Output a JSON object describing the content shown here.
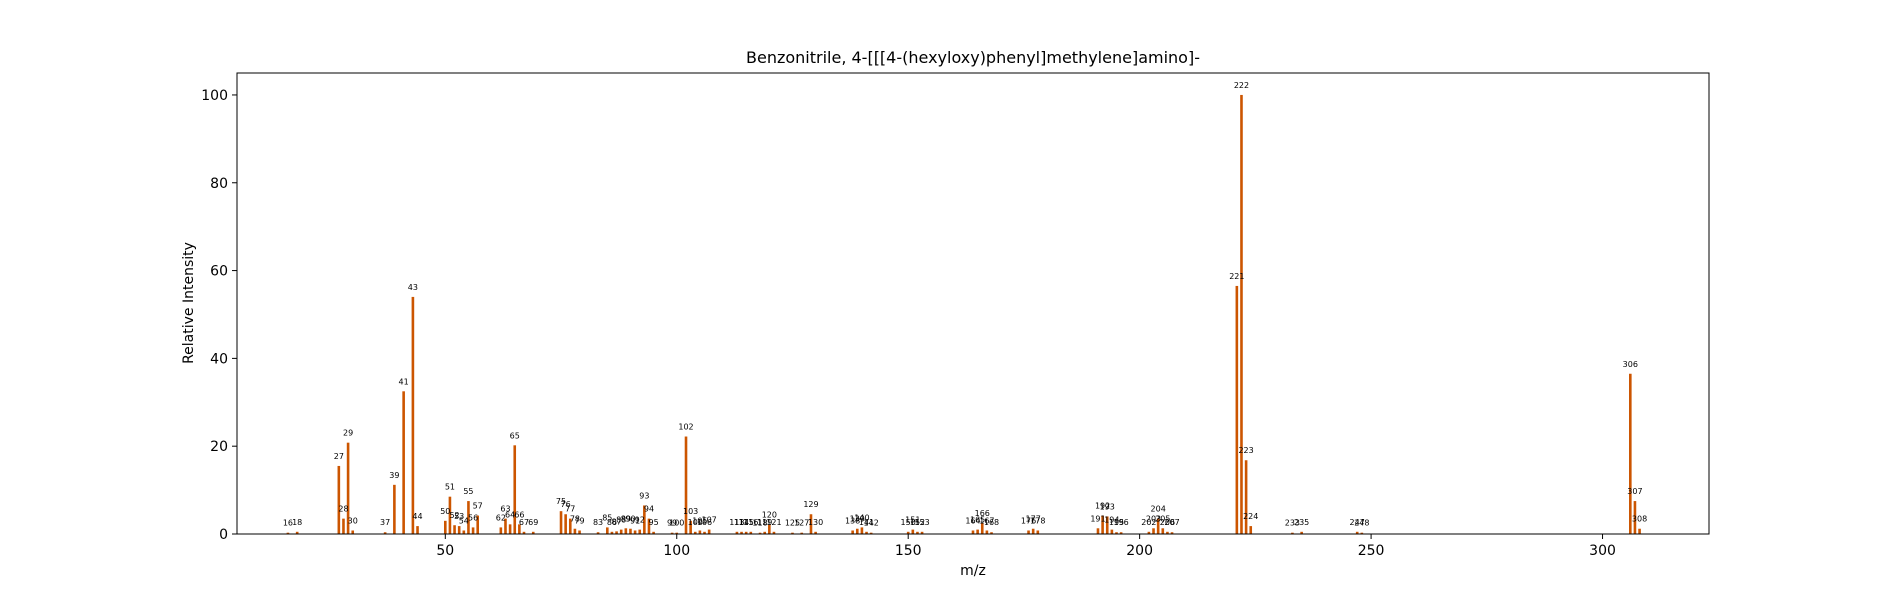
{
  "chart_data": {
    "type": "bar",
    "title": "Benzonitrile, 4-[[[4-(hexyloxy)phenyl]methylene]amino]-",
    "xlabel": "m/z",
    "ylabel": "Relative Intensity",
    "xlim": [
      5,
      323
    ],
    "ylim": [
      0,
      105
    ],
    "xticks": [
      50,
      100,
      150,
      200,
      250,
      300
    ],
    "yticks": [
      0,
      20,
      40,
      60,
      80,
      100
    ],
    "grid": false,
    "bar_color": "#cc5500",
    "peaks": [
      {
        "x": 16,
        "y": 0.3
      },
      {
        "x": 18,
        "y": 0.5
      },
      {
        "x": 27,
        "y": 15.5
      },
      {
        "x": 28,
        "y": 3.5
      },
      {
        "x": 29,
        "y": 20.8
      },
      {
        "x": 30,
        "y": 0.8
      },
      {
        "x": 37,
        "y": 0.4
      },
      {
        "x": 39,
        "y": 11.2
      },
      {
        "x": 41,
        "y": 32.5
      },
      {
        "x": 43,
        "y": 54.0
      },
      {
        "x": 44,
        "y": 1.8
      },
      {
        "x": 50,
        "y": 3.0
      },
      {
        "x": 51,
        "y": 8.5
      },
      {
        "x": 52,
        "y": 2.0
      },
      {
        "x": 53,
        "y": 1.8
      },
      {
        "x": 54,
        "y": 0.8
      },
      {
        "x": 55,
        "y": 7.5
      },
      {
        "x": 56,
        "y": 1.5
      },
      {
        "x": 57,
        "y": 4.2
      },
      {
        "x": 62,
        "y": 1.5
      },
      {
        "x": 63,
        "y": 3.5
      },
      {
        "x": 64,
        "y": 2.2
      },
      {
        "x": 65,
        "y": 20.2
      },
      {
        "x": 66,
        "y": 2.2
      },
      {
        "x": 67,
        "y": 0.5
      },
      {
        "x": 69,
        "y": 0.5
      },
      {
        "x": 75,
        "y": 5.2
      },
      {
        "x": 76,
        "y": 4.5
      },
      {
        "x": 77,
        "y": 3.5
      },
      {
        "x": 78,
        "y": 1.2
      },
      {
        "x": 79,
        "y": 0.8
      },
      {
        "x": 83,
        "y": 0.4
      },
      {
        "x": 85,
        "y": 1.5
      },
      {
        "x": 86,
        "y": 0.5
      },
      {
        "x": 87,
        "y": 0.6
      },
      {
        "x": 88,
        "y": 1.0
      },
      {
        "x": 89,
        "y": 1.3
      },
      {
        "x": 90,
        "y": 1.2
      },
      {
        "x": 91,
        "y": 0.8
      },
      {
        "x": 92,
        "y": 1.0
      },
      {
        "x": 93,
        "y": 6.5
      },
      {
        "x": 94,
        "y": 3.5
      },
      {
        "x": 95,
        "y": 0.5
      },
      {
        "x": 99,
        "y": 0.3
      },
      {
        "x": 100,
        "y": 0.3
      },
      {
        "x": 102,
        "y": 22.2
      },
      {
        "x": 103,
        "y": 3.0
      },
      {
        "x": 104,
        "y": 0.5
      },
      {
        "x": 105,
        "y": 0.8
      },
      {
        "x": 106,
        "y": 0.5
      },
      {
        "x": 107,
        "y": 1.0
      },
      {
        "x": 113,
        "y": 0.5
      },
      {
        "x": 114,
        "y": 0.5
      },
      {
        "x": 115,
        "y": 0.5
      },
      {
        "x": 116,
        "y": 0.5
      },
      {
        "x": 118,
        "y": 0.3
      },
      {
        "x": 119,
        "y": 0.5
      },
      {
        "x": 120,
        "y": 2.2
      },
      {
        "x": 121,
        "y": 0.5
      },
      {
        "x": 125,
        "y": 0.3
      },
      {
        "x": 127,
        "y": 0.3
      },
      {
        "x": 129,
        "y": 4.5
      },
      {
        "x": 130,
        "y": 0.5
      },
      {
        "x": 138,
        "y": 0.8
      },
      {
        "x": 139,
        "y": 1.2
      },
      {
        "x": 140,
        "y": 1.5
      },
      {
        "x": 141,
        "y": 0.5
      },
      {
        "x": 142,
        "y": 0.3
      },
      {
        "x": 150,
        "y": 0.5
      },
      {
        "x": 151,
        "y": 1.0
      },
      {
        "x": 152,
        "y": 0.5
      },
      {
        "x": 153,
        "y": 0.5
      },
      {
        "x": 164,
        "y": 0.8
      },
      {
        "x": 165,
        "y": 1.0
      },
      {
        "x": 166,
        "y": 2.5
      },
      {
        "x": 167,
        "y": 0.8
      },
      {
        "x": 168,
        "y": 0.4
      },
      {
        "x": 176,
        "y": 0.8
      },
      {
        "x": 177,
        "y": 1.2
      },
      {
        "x": 178,
        "y": 0.8
      },
      {
        "x": 191,
        "y": 1.3
      },
      {
        "x": 192,
        "y": 4.2
      },
      {
        "x": 193,
        "y": 4.0
      },
      {
        "x": 194,
        "y": 1.0
      },
      {
        "x": 195,
        "y": 0.4
      },
      {
        "x": 196,
        "y": 0.4
      },
      {
        "x": 202,
        "y": 0.5
      },
      {
        "x": 203,
        "y": 1.3
      },
      {
        "x": 204,
        "y": 3.5
      },
      {
        "x": 205,
        "y": 1.3
      },
      {
        "x": 206,
        "y": 0.5
      },
      {
        "x": 207,
        "y": 0.4
      },
      {
        "x": 221,
        "y": 56.5
      },
      {
        "x": 222,
        "y": 100.0
      },
      {
        "x": 223,
        "y": 16.8
      },
      {
        "x": 224,
        "y": 1.8
      },
      {
        "x": 233,
        "y": 0.3
      },
      {
        "x": 235,
        "y": 0.5
      },
      {
        "x": 247,
        "y": 0.5
      },
      {
        "x": 248,
        "y": 0.3
      },
      {
        "x": 306,
        "y": 36.5
      },
      {
        "x": 307,
        "y": 7.5
      },
      {
        "x": 308,
        "y": 1.2
      }
    ]
  }
}
